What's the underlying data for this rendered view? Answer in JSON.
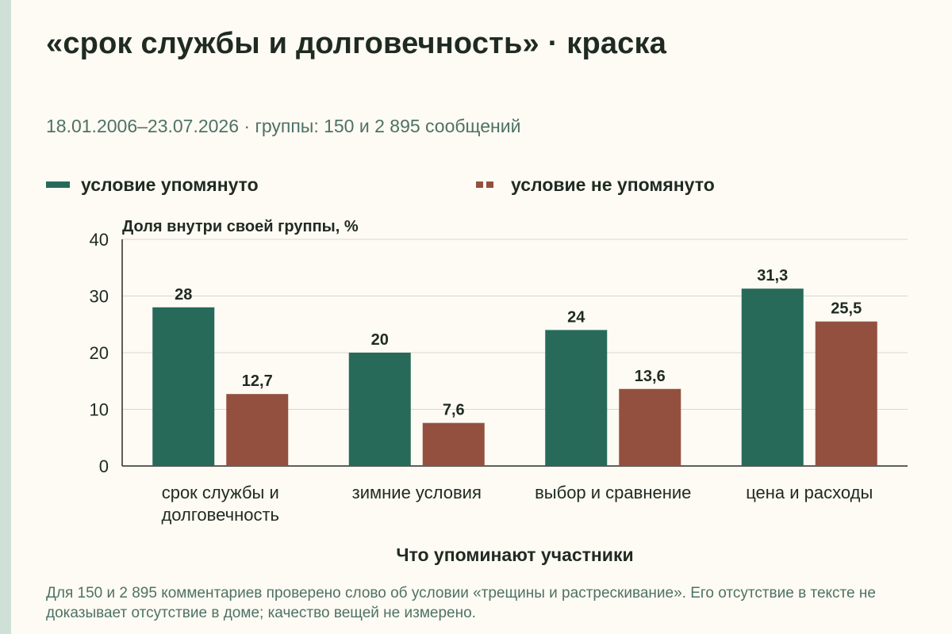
{
  "header": {
    "title": "«срок службы и долговечность» · краска",
    "subtitle": "18.01.2006–23.07.2026 · группы: 150 и 2 895 сообщений"
  },
  "footer": {
    "note": "Для 150 и 2 895 комментариев проверено слово об условии «трещины и растрескивание». Его отсутствие в тексте не доказывает отсутствие в доме; качество вещей не измерено."
  },
  "colors": {
    "mentioned": "#276a5a",
    "not_mentioned": "#94503f",
    "background": "#fdfbf3"
  },
  "chart_data": {
    "type": "bar",
    "ylabel": "Доля внутри своей группы, %",
    "xlabel": "Что упоминают участники",
    "ylim": [
      0,
      40
    ],
    "yticks": [
      "0",
      "10",
      "20",
      "30",
      "40"
    ],
    "grid": true,
    "legend_position": "top",
    "categories": [
      [
        "срок службы и",
        "долговечность"
      ],
      [
        "зимние условия"
      ],
      [
        "выбор и сравнение"
      ],
      [
        "цена и расходы"
      ]
    ],
    "series": [
      {
        "name": "условие упомянуто",
        "color": "#276a5a",
        "values": [
          28,
          20,
          24,
          31.3
        ],
        "labels": [
          "28",
          "20",
          "24",
          "31,3"
        ]
      },
      {
        "name": "условие не упомянуто",
        "color": "#94503f",
        "values": [
          12.7,
          7.6,
          13.6,
          25.5
        ],
        "labels": [
          "12,7",
          "7,6",
          "13,6",
          "25,5"
        ]
      }
    ]
  }
}
